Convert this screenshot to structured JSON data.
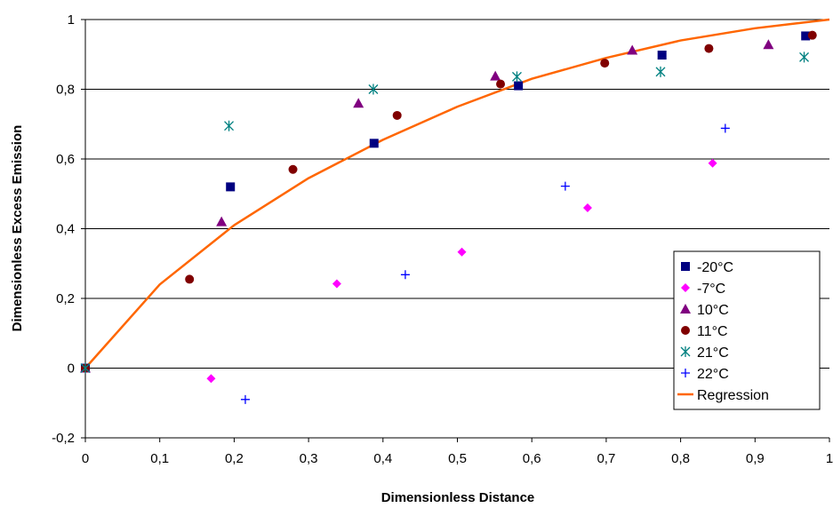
{
  "chart_data": {
    "type": "scatter",
    "title": "",
    "xlabel": "Dimensionless Distance",
    "ylabel": "Dimensionless Excess Emission",
    "xlim": [
      0,
      1
    ],
    "ylim": [
      -0.2,
      1
    ],
    "x_ticks": [
      "0",
      "0,1",
      "0,2",
      "0,3",
      "0,4",
      "0,5",
      "0,6",
      "0,7",
      "0,8",
      "0,9",
      "1"
    ],
    "y_ticks": [
      "-0,2",
      "0",
      "0,2",
      "0,4",
      "0,6",
      "0,8",
      "1"
    ],
    "grid": "horizontal",
    "legend_position": "bottom-right",
    "series": [
      {
        "name": "-20°C",
        "marker": "square",
        "color": "#000080",
        "x": [
          0,
          0.195,
          0.388,
          0.582,
          0.775,
          0.968
        ],
        "y": [
          0,
          0.52,
          0.645,
          0.81,
          0.898,
          0.953
        ]
      },
      {
        "name": "-7°C",
        "marker": "diamond",
        "color": "#ff00ff",
        "x": [
          0.169,
          0.338,
          0.506,
          0.675,
          0.843
        ],
        "y": [
          -0.03,
          0.242,
          0.333,
          0.46,
          0.588
        ]
      },
      {
        "name": "10°C",
        "marker": "triangle",
        "color": "#800080",
        "x": [
          0,
          0.183,
          0.367,
          0.551,
          0.735,
          0.918
        ],
        "y": [
          0,
          0.42,
          0.76,
          0.838,
          0.912,
          0.928
        ]
      },
      {
        "name": "11°C",
        "marker": "circle",
        "color": "#800000",
        "x": [
          0,
          0.14,
          0.279,
          0.419,
          0.558,
          0.698,
          0.838,
          0.977
        ],
        "y": [
          0,
          0.255,
          0.57,
          0.725,
          0.815,
          0.875,
          0.917,
          0.955
        ]
      },
      {
        "name": "21°C",
        "marker": "asterisk",
        "color": "#008080",
        "x": [
          0,
          0.193,
          0.387,
          0.58,
          0.773,
          0.966
        ],
        "y": [
          0,
          0.695,
          0.8,
          0.836,
          0.85,
          0.892
        ]
      },
      {
        "name": "22°C",
        "marker": "plus",
        "color": "#0000ff",
        "x": [
          0.215,
          0.43,
          0.645,
          0.86
        ],
        "y": [
          -0.09,
          0.268,
          0.522,
          0.688
        ]
      },
      {
        "name": "Regression",
        "marker": "line",
        "color": "#ff6600",
        "x": [
          0,
          0.1,
          0.2,
          0.3,
          0.4,
          0.5,
          0.6,
          0.7,
          0.8,
          0.9,
          1.0
        ],
        "y": [
          0,
          0.24,
          0.41,
          0.545,
          0.655,
          0.75,
          0.83,
          0.89,
          0.94,
          0.975,
          1.0
        ]
      }
    ]
  }
}
